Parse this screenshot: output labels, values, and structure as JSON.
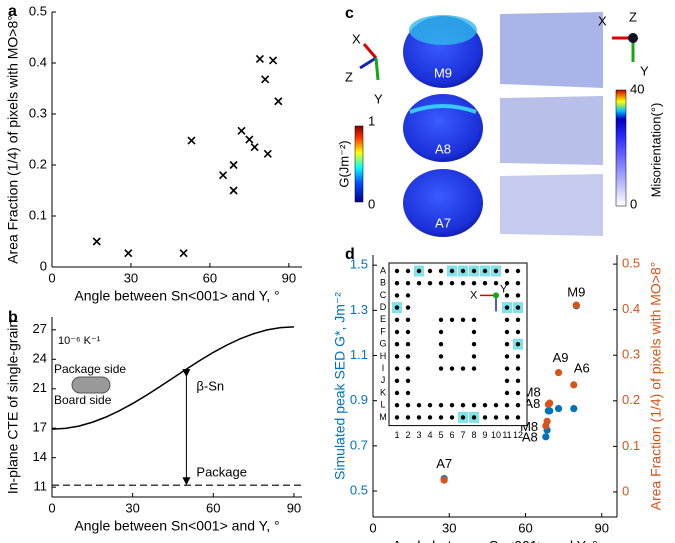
{
  "chart_data": [
    {
      "type": "scatter",
      "panel": "a",
      "xlabel": "Angle between Sn<001> and Y, °",
      "ylabel": "Area Fraction (1/4) of pixels with MO>8°",
      "x": [
        17,
        29,
        50,
        53,
        65,
        69,
        69,
        72,
        75,
        77,
        79,
        81,
        82,
        84,
        86
      ],
      "series": [
        {
          "color": "#000000",
          "marker": "x",
          "values": [
            0.05,
            0.027,
            0.027,
            0.248,
            0.18,
            0.2,
            0.15,
            0.267,
            0.25,
            0.235,
            0.408,
            0.368,
            0.222,
            0.405,
            0.325
          ]
        }
      ],
      "xlim": [
        0,
        95
      ],
      "xticks": [
        0,
        30,
        60,
        90
      ],
      "ylim": [
        0,
        0.5
      ],
      "yticks": [
        0,
        0.1,
        0.2,
        0.3,
        0.4,
        0.5
      ]
    },
    {
      "type": "line",
      "panel": "b",
      "xlabel": "Angle between Sn<001> and Y, °",
      "ylabel": "In-plane CTE of single-grain",
      "unit": "10⁻⁶ K⁻¹",
      "inset_labels": [
        "Package side",
        "Board side"
      ],
      "x": [
        0,
        5,
        10,
        15,
        20,
        25,
        30,
        35,
        40,
        45,
        50,
        55,
        60,
        65,
        70,
        75,
        80,
        85,
        90
      ],
      "series": [
        {
          "name": "β-Sn",
          "color": "#000000",
          "values": [
            16.9,
            16.98,
            17.21,
            17.6,
            18.12,
            18.76,
            19.5,
            20.32,
            21.2,
            22.1,
            23.0,
            23.88,
            24.7,
            25.44,
            26.08,
            26.6,
            26.99,
            27.22,
            27.3
          ]
        }
      ],
      "reference_line": {
        "name": "Package",
        "value": 11.2,
        "color": "#000000",
        "style": "dashed"
      },
      "xlim": [
        0,
        93
      ],
      "xticks": [
        0,
        30,
        60,
        90
      ],
      "ylim": [
        10,
        28.3
      ],
      "yticks": [
        11,
        14,
        17,
        21,
        24,
        27
      ]
    },
    {
      "type": "scatter",
      "panel": "d",
      "xlabel": "Angle between Sn<001> and Y, °",
      "ylabel": "Simulated peak SED G*, Jm⁻²",
      "y2label": "Area Fraction (1/4) of pixels with MO>8°",
      "x": [
        28,
        68,
        68.5,
        69,
        69.5,
        73,
        79,
        80
      ],
      "point_labels": [
        "A7",
        "A8",
        "M8",
        "A8",
        "M8",
        "A9",
        "A6",
        "M9"
      ],
      "series": [
        {
          "color": "#0072bd",
          "values": [
            0.555,
            0.74,
            0.77,
            0.855,
            0.855,
            0.865,
            0.865,
            1.32
          ]
        },
        {
          "color": "#d95319",
          "axis": "y2",
          "values": [
            0.026,
            0.145,
            0.155,
            0.192,
            0.195,
            0.262,
            0.235,
            0.41
          ]
        }
      ],
      "xlim": [
        0,
        96
      ],
      "xticks": [
        0,
        30,
        60,
        90
      ],
      "ylim": [
        0.385,
        1.545
      ],
      "yticks": [
        0.5,
        0.7,
        0.9,
        1.1,
        1.3,
        1.5
      ],
      "y2lim": [
        -0.055,
        0.52
      ],
      "y2ticks": [
        0,
        0.1,
        0.2,
        0.3,
        0.4,
        0.5
      ],
      "inset": {
        "row_labels": [
          "A",
          "B",
          "C",
          "D",
          "E",
          "F",
          "G",
          "H",
          "I",
          "J",
          "K",
          "L",
          "M"
        ],
        "col_labels": [
          1,
          2,
          3,
          4,
          5,
          6,
          7,
          8,
          9,
          10,
          11,
          12
        ],
        "x_label": "X",
        "y_label": "Y"
      }
    }
  ],
  "panel_c": {
    "panel": "c",
    "samples": [
      "M9",
      "A8",
      "A7"
    ],
    "triad": {
      "x": "X",
      "y": "Y",
      "z": "Z"
    },
    "colorbar_g": {
      "label": "G(Jm⁻²)",
      "ticks": [
        0,
        1
      ]
    },
    "colorbar_mis": {
      "label": "Misorientation(°)",
      "ticks": [
        0,
        40
      ]
    }
  }
}
